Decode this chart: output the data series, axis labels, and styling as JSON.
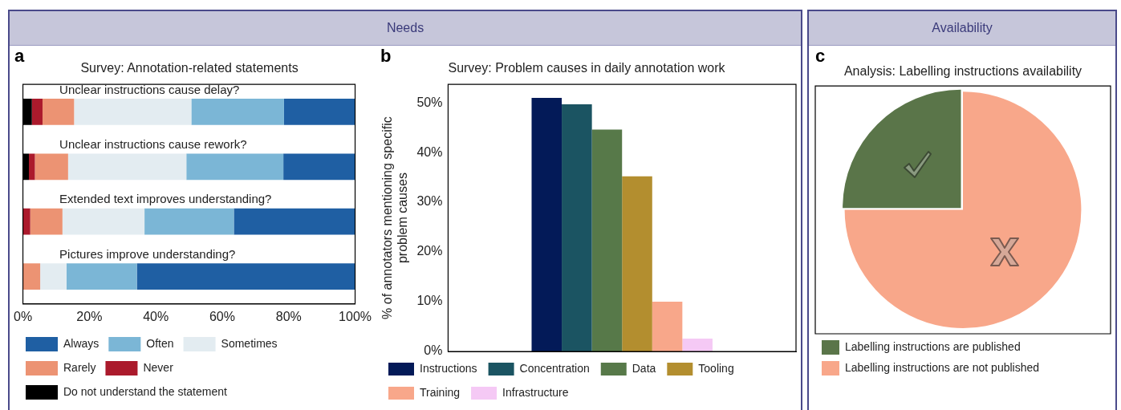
{
  "chart_data": [
    {
      "type": "bar",
      "orientation": "horizontal",
      "stacked": true,
      "title": "Survey: Annotation-related statements",
      "categories": [
        "Unclear instructions cause delay?",
        "Unclear instructions cause rework?",
        "Extended text improves understanding?",
        "Pictures improve understanding?"
      ],
      "series": [
        {
          "name": "Do not understand the statement",
          "color": "#000000",
          "values": [
            2.7,
            1.8,
            0,
            0
          ]
        },
        {
          "name": "Never",
          "color": "#ab1a2c",
          "values": [
            3.2,
            1.8,
            2.2,
            0
          ]
        },
        {
          "name": "Rarely",
          "color": "#ec9373",
          "values": [
            9.5,
            10.0,
            9.7,
            5.2
          ]
        },
        {
          "name": "Sometimes",
          "color": "#e3ecf1",
          "values": [
            35.3,
            35.6,
            24.7,
            7.9
          ]
        },
        {
          "name": "Often",
          "color": "#7bb6d6",
          "values": [
            27.9,
            29.2,
            26.9,
            21.2
          ]
        },
        {
          "name": "Always",
          "color": "#1f5fa3",
          "values": [
            21.4,
            21.6,
            36.5,
            65.7
          ]
        }
      ],
      "xlim": [
        0,
        100
      ],
      "xticks": [
        {
          "value": 0,
          "label": "0%"
        },
        {
          "value": 20,
          "label": "20%"
        },
        {
          "value": 40,
          "label": "40%"
        },
        {
          "value": 60,
          "label": "60%"
        },
        {
          "value": 80,
          "label": "80%"
        },
        {
          "value": 100,
          "label": "100%"
        }
      ],
      "grid": false,
      "legend": "bottom",
      "annotations": [
        "Needs",
        "a"
      ]
    },
    {
      "type": "bar",
      "title": "Survey: Problem causes in daily annotation work",
      "ylabel": "% of annotators mentioning specific problem causes",
      "categories": [
        null
      ],
      "series": [
        {
          "name": "Instructions",
          "color": "#031a58",
          "values": [
            51.0
          ]
        },
        {
          "name": "Concentration",
          "color": "#1b5462",
          "values": [
            49.7
          ]
        },
        {
          "name": "Data",
          "color": "#577949",
          "values": [
            44.6
          ]
        },
        {
          "name": "Tooling",
          "color": "#b38e2f",
          "values": [
            35.2
          ]
        },
        {
          "name": "Training",
          "color": "#f8a78a",
          "values": [
            10.0
          ]
        },
        {
          "name": "Infrastructure",
          "color": "#f5c9f5",
          "values": [
            2.6
          ]
        }
      ],
      "ylim": [
        0,
        53.7
      ],
      "yticks": [
        {
          "value": 0,
          "label": "0%"
        },
        {
          "value": 10,
          "label": "10%"
        },
        {
          "value": 20,
          "label": "20%"
        },
        {
          "value": 30,
          "label": "30%"
        },
        {
          "value": 40,
          "label": "40%"
        },
        {
          "value": 50,
          "label": "50%"
        }
      ],
      "grid": false,
      "legend": "bottom",
      "annotations": [
        "b"
      ]
    },
    {
      "type": "pie",
      "title": "Analysis: Labelling instructions availability",
      "categories": [
        "Labelling instructions are published",
        "Labelling instructions are not published"
      ],
      "values": [
        25,
        75
      ],
      "colors": [
        "#5a7549",
        "#f8a78a"
      ],
      "legend": "bottom",
      "annotations": [
        "Availability",
        "c"
      ]
    }
  ]
}
